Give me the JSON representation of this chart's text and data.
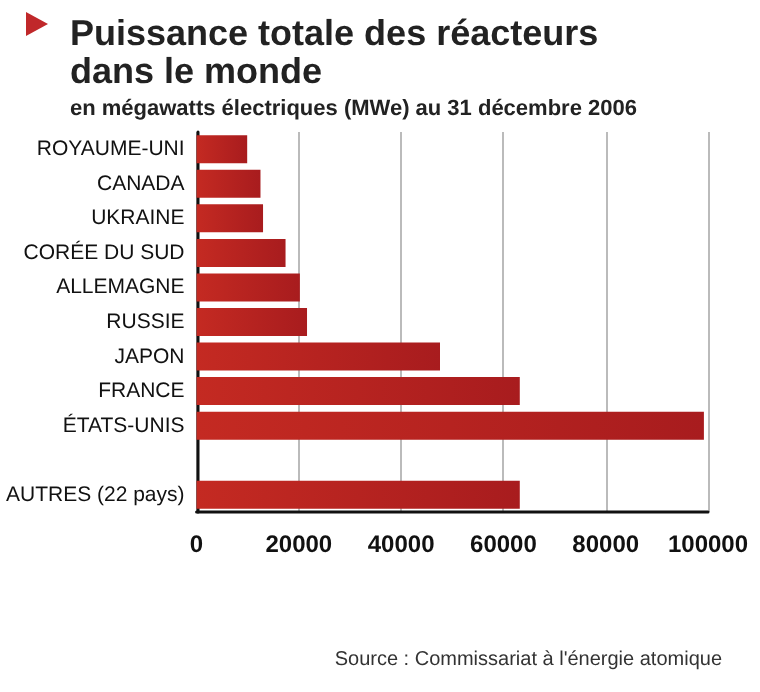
{
  "chart_data": {
    "type": "bar",
    "orientation": "horizontal",
    "title": "Puissance totale des réacteurs dans le monde",
    "subtitle": "en mégawatts électriques (MWe) au 31 décembre 2006",
    "categories": [
      "ROYAUME-UNI",
      "CANADA",
      "UKRAINE",
      "CORÉE DU SUD",
      "ALLEMAGNE",
      "RUSSIE",
      "JAPON",
      "FRANCE",
      "ÉTATS-UNIS",
      null,
      "AUTRES (22 pays)"
    ],
    "values": [
      9900,
      12500,
      13000,
      17400,
      20200,
      21600,
      47600,
      63200,
      99200,
      null,
      63200
    ],
    "color": "#a81c1e",
    "xlim": [
      0,
      100000
    ],
    "xticks": [
      0,
      20000,
      40000,
      60000,
      80000,
      100000
    ],
    "grid": "x",
    "annotations": [
      "Source : Commissariat à l'énergie atomique"
    ]
  }
}
